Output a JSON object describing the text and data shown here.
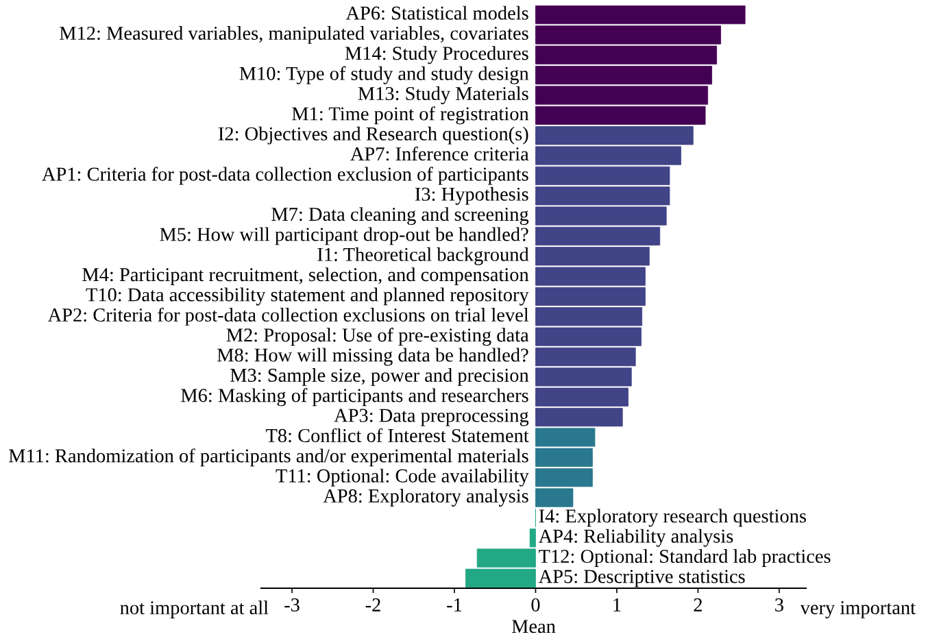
{
  "chart_data": {
    "type": "bar",
    "orientation": "horizontal",
    "xlabel": "Mean",
    "categories": [
      "AP6: Statistical models",
      "M12: Measured variables, manipulated variables, covariates",
      "M14: Study Procedures",
      "M10: Type of study and study design",
      "M13: Study Materials",
      "M1: Time point of registration",
      "I2: Objectives and Research question(s)",
      "AP7: Inference criteria",
      "AP1: Criteria for post-data collection exclusion of participants",
      "I3: Hypothesis",
      "M7: Data cleaning and screening",
      "M5: How will participant drop-out be handled?",
      "I1: Theoretical background",
      "M4: Participant recruitment, selection, and compensation",
      "T10: Data accessibility statement and planned repository",
      "AP2: Criteria for post-data collection exclusions on trial level",
      "M2: Proposal: Use of pre-existing data",
      "M8: How will missing data be handled?",
      "M3: Sample size, power and precision",
      "M6: Masking of participants and researchers",
      "AP3: Data preprocessing",
      "T8: Conflict of Interest Statement",
      "M11: Randomization of participants and/or experimental materials",
      "T11: Optional: Code availability",
      "AP8: Exploratory analysis",
      "I4: Exploratory research questions",
      "AP4: Reliability analysis",
      "T12: Optional: Standard lab practices",
      "AP5: Descriptive statistics"
    ],
    "values": [
      2.58,
      2.28,
      2.23,
      2.17,
      2.12,
      2.09,
      1.94,
      1.79,
      1.65,
      1.65,
      1.61,
      1.53,
      1.4,
      1.35,
      1.35,
      1.31,
      1.3,
      1.23,
      1.18,
      1.14,
      1.07,
      0.73,
      0.7,
      0.7,
      0.46,
      0,
      -0.07,
      -0.72,
      -0.86
    ],
    "colors": [
      "#440154",
      "#440154",
      "#440154",
      "#440154",
      "#440154",
      "#440154",
      "#414487",
      "#414487",
      "#414487",
      "#414487",
      "#414487",
      "#414487",
      "#414487",
      "#414487",
      "#414487",
      "#414487",
      "#414487",
      "#414487",
      "#414487",
      "#414487",
      "#414487",
      "#2a788e",
      "#2a788e",
      "#2a788e",
      "#2a788e",
      "#22a884",
      "#22a884",
      "#22a884",
      "#22a884"
    ],
    "xlim": [
      -3.38,
      3.33
    ],
    "xticks": [
      -3,
      -2,
      -1,
      0,
      1,
      2,
      3
    ],
    "annotations": [
      "not important at all",
      "very important"
    ],
    "grid": false,
    "legend": false
  }
}
